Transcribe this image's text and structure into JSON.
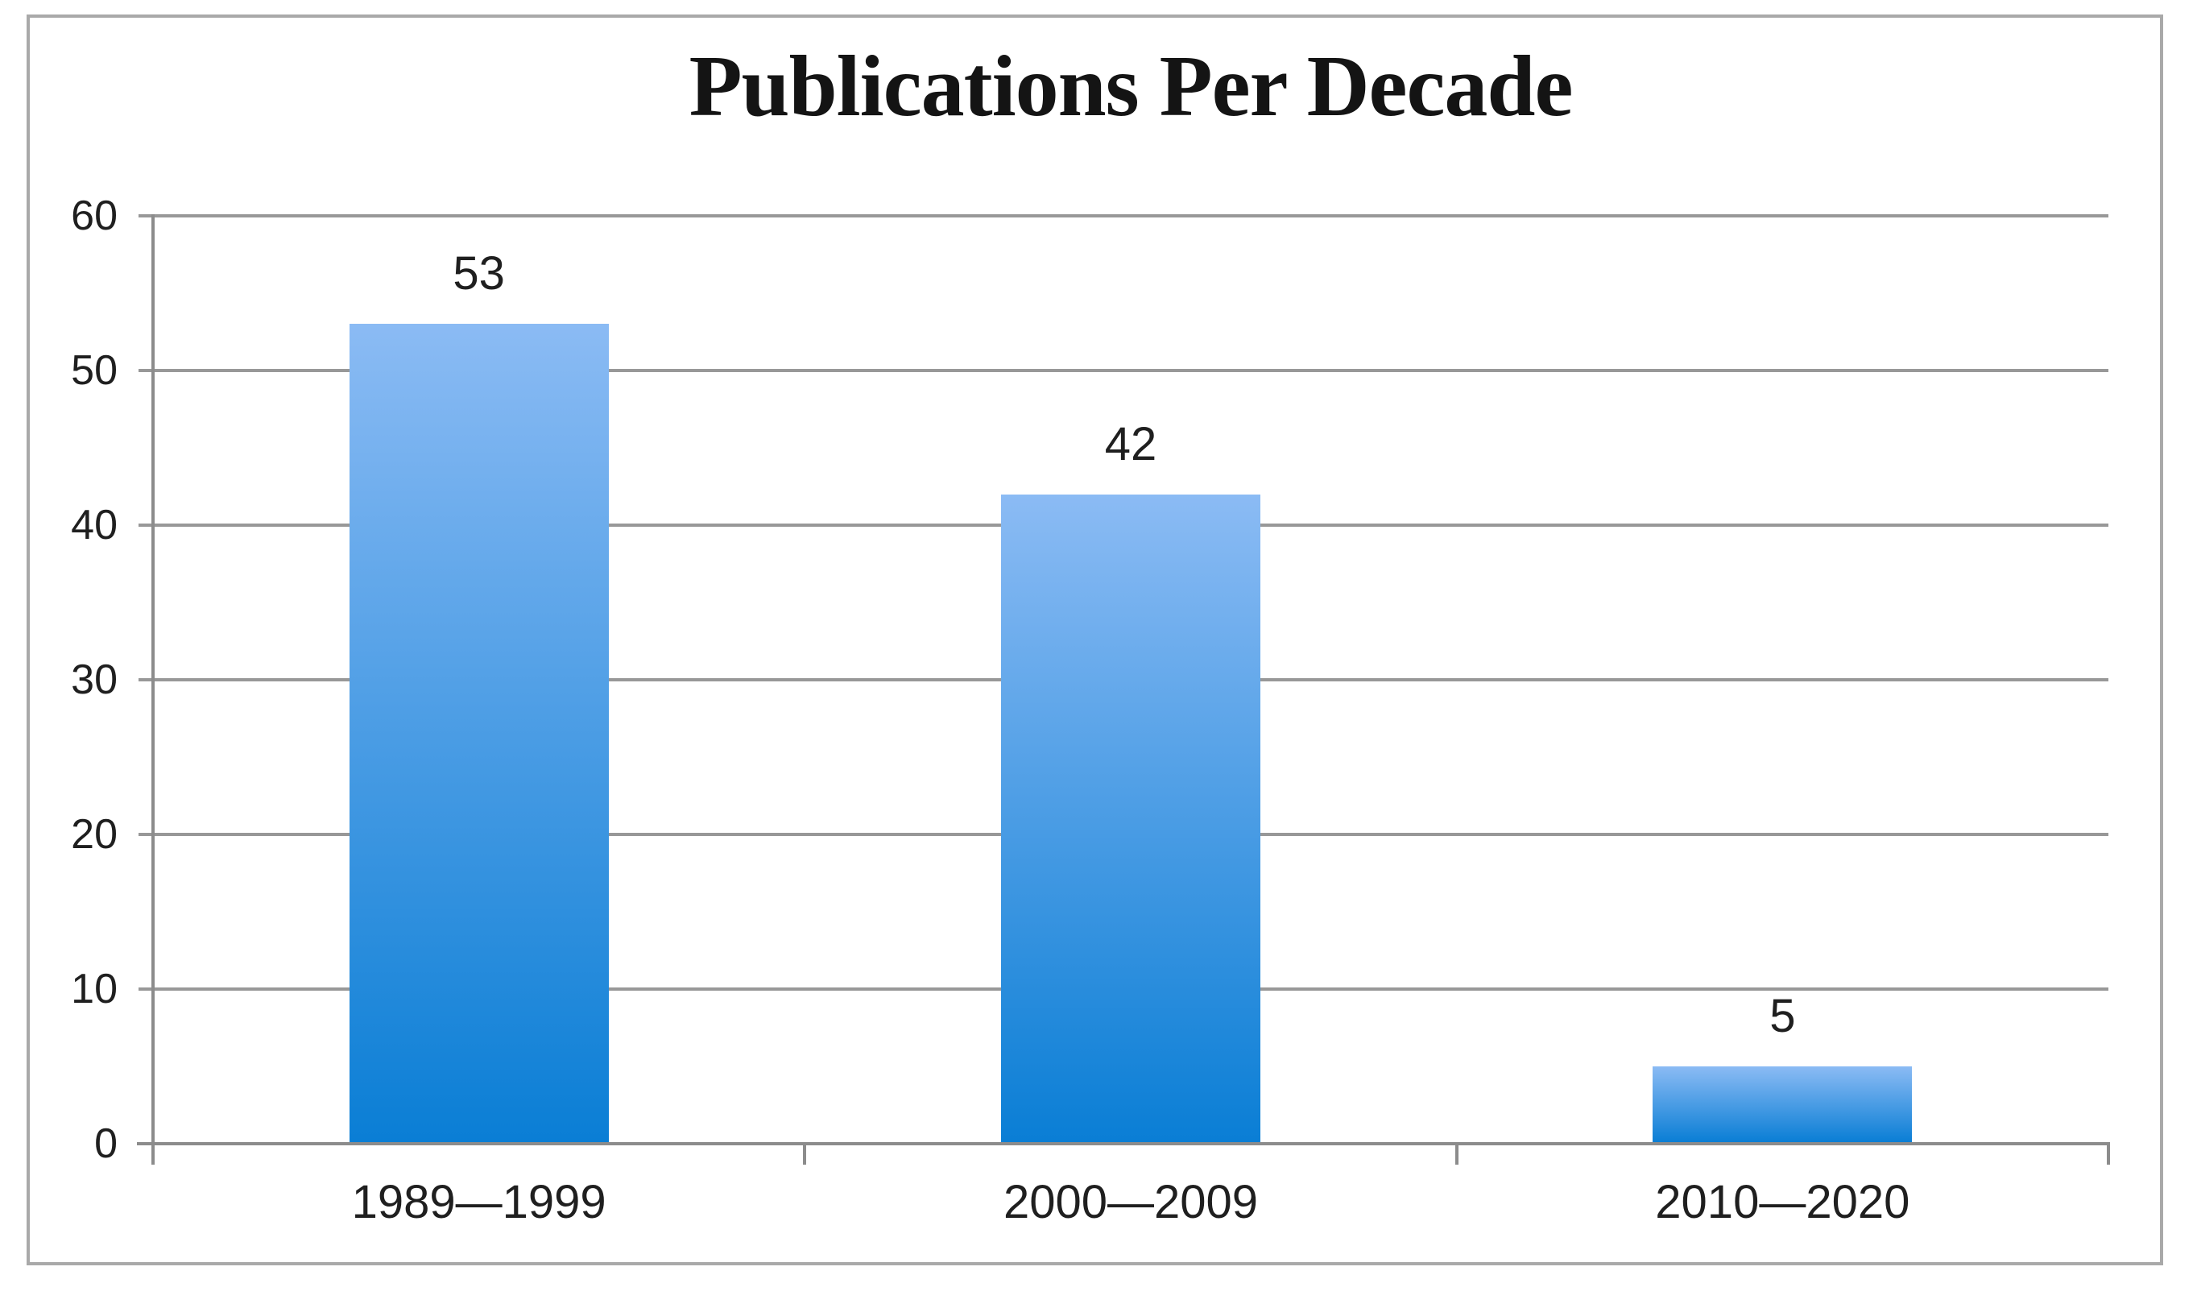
{
  "chart_data": {
    "type": "bar",
    "title": "Publications Per Decade",
    "categories": [
      "1989—1999",
      "2000—2009",
      "2010—2020"
    ],
    "values": [
      53,
      42,
      5
    ],
    "data_labels": [
      "53",
      "42",
      "5"
    ],
    "xlabel": "",
    "ylabel": "",
    "ylim": [
      0,
      60
    ],
    "yticks": [
      0,
      10,
      20,
      30,
      40,
      50,
      60
    ],
    "grid": "horizontal",
    "legend": "none",
    "colors": {
      "bar_gradient_top": "#8bbbf4",
      "bar_gradient_bottom": "#0a7ed5",
      "gridline": "#989898",
      "axis": "#8c8c8c",
      "frame_border": "#a9a9a9",
      "text": "#1f1f1f",
      "background": "#ffffff"
    }
  }
}
